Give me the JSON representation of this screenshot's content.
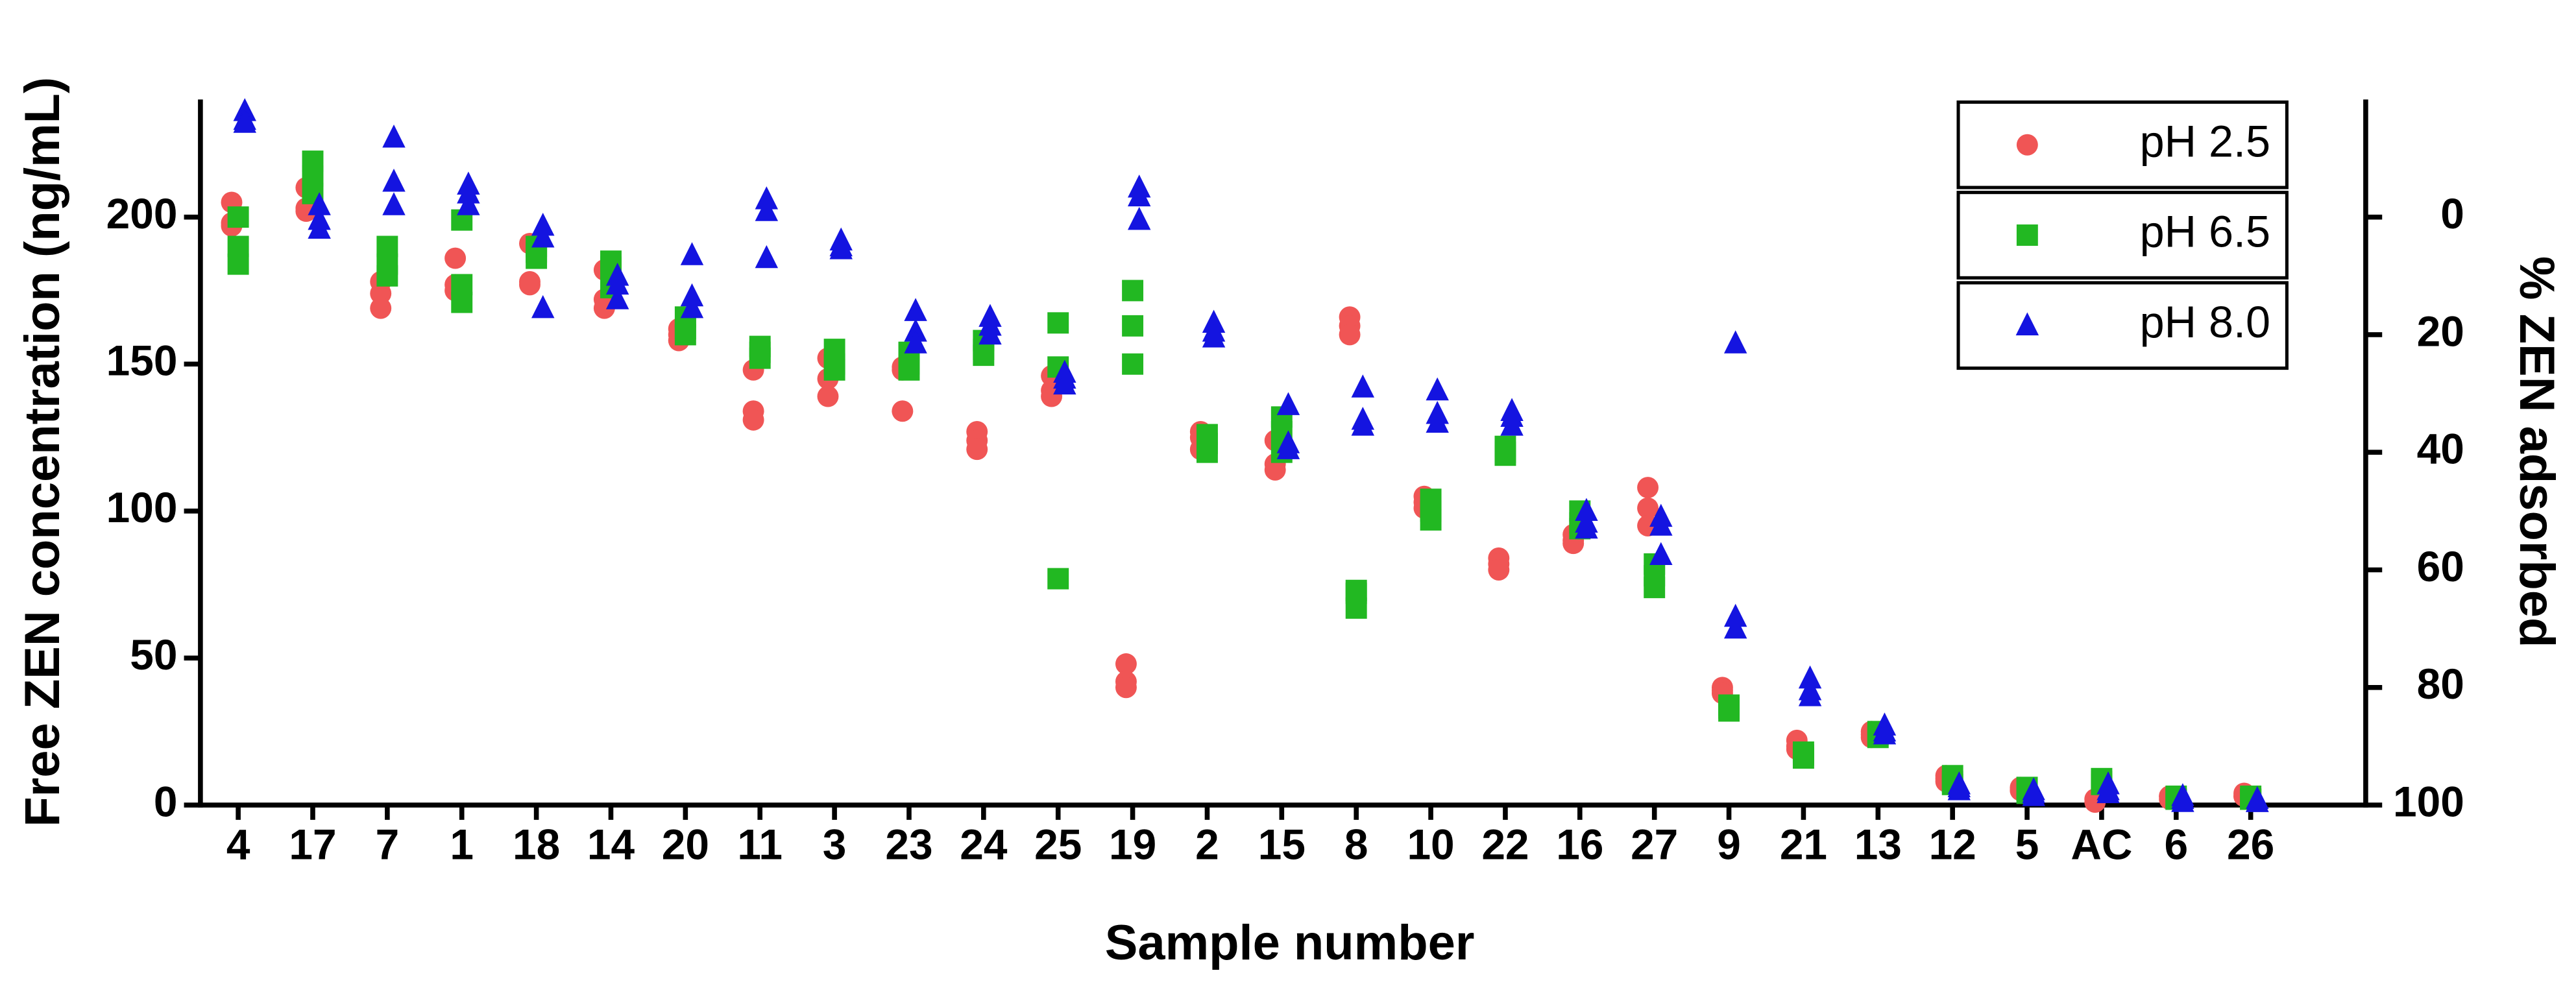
{
  "chart_data": {
    "type": "dot",
    "x_label": "Sample number",
    "y_label": "Free ZEN concentration (ng/mL)",
    "y2_label": "% ZEN adsorbed",
    "categories": [
      "4",
      "17",
      "7",
      "1",
      "18",
      "14",
      "20",
      "11",
      "3",
      "23",
      "24",
      "25",
      "19",
      "2",
      "15",
      "8",
      "10",
      "22",
      "16",
      "27",
      "9",
      "21",
      "13",
      "12",
      "5",
      "AC",
      "6",
      "26"
    ],
    "ylim": [
      0,
      240
    ],
    "yticks": [
      0,
      50,
      100,
      150,
      200
    ],
    "y2lim": [
      100,
      -20
    ],
    "y2ticks": [
      0,
      20,
      40,
      60,
      80,
      100
    ],
    "legend": "upper right",
    "series": [
      {
        "name": "pH 2.5",
        "color": "#f05555",
        "marker": "circle",
        "values": [
          [
            205,
            198,
            197
          ],
          [
            210,
            203,
            202
          ],
          [
            178,
            174,
            169
          ],
          [
            186,
            177,
            175
          ],
          [
            191,
            178,
            177
          ],
          [
            182,
            172,
            169
          ],
          [
            162,
            160,
            158
          ],
          [
            148,
            134,
            131
          ],
          [
            152,
            145,
            139
          ],
          [
            149,
            148,
            134
          ],
          [
            127,
            124,
            121
          ],
          [
            146,
            141,
            139
          ],
          [
            48,
            42,
            40
          ],
          [
            127,
            125,
            121
          ],
          [
            124,
            116,
            114
          ],
          [
            166,
            163,
            160
          ],
          [
            105,
            103,
            101
          ],
          [
            84,
            82,
            80
          ],
          [
            92,
            90,
            89
          ],
          [
            108,
            101,
            95
          ],
          [
            40,
            39,
            38
          ],
          [
            22,
            20,
            19
          ],
          [
            25,
            24,
            23
          ],
          [
            10,
            9,
            8
          ],
          [
            6,
            5,
            5
          ],
          [
            2,
            2,
            1
          ],
          [
            3,
            3,
            2
          ],
          [
            4,
            3,
            3
          ]
        ]
      },
      {
        "name": "pH 6.5",
        "color": "#22b822",
        "marker": "square",
        "values": [
          [
            200,
            190,
            184
          ],
          [
            219,
            214,
            208
          ],
          [
            190,
            184,
            180
          ],
          [
            199,
            177,
            171
          ],
          [
            190,
            188,
            186
          ],
          [
            185,
            183,
            176
          ],
          [
            166,
            162,
            160
          ],
          [
            156,
            154,
            152
          ],
          [
            155,
            150,
            148
          ],
          [
            154,
            150,
            148
          ],
          [
            158,
            155,
            153
          ],
          [
            164,
            149,
            77
          ],
          [
            175,
            163,
            150
          ],
          [
            126,
            123,
            120
          ],
          [
            132,
            127,
            120
          ],
          [
            73,
            72,
            67
          ],
          [
            104,
            100,
            97
          ],
          [
            122,
            120,
            119
          ],
          [
            100,
            96,
            94
          ],
          [
            82,
            78,
            74
          ],
          [
            34,
            33,
            32
          ],
          [
            18,
            17,
            16
          ],
          [
            25,
            24,
            23
          ],
          [
            10,
            8,
            7
          ],
          [
            6,
            5,
            4
          ],
          [
            9,
            8,
            7
          ],
          [
            3,
            2,
            2
          ],
          [
            3,
            2,
            2
          ]
        ]
      },
      {
        "name": "pH 8.0",
        "color": "#1414e0",
        "marker": "triangle",
        "values": [
          [
            236,
            233,
            232
          ],
          [
            204,
            199,
            196
          ],
          [
            227,
            212,
            204
          ],
          [
            211,
            208,
            204
          ],
          [
            197,
            193,
            169
          ],
          [
            180,
            177,
            172
          ],
          [
            187,
            173,
            169
          ],
          [
            206,
            202,
            186
          ],
          [
            192,
            190,
            189
          ],
          [
            168,
            161,
            157
          ],
          [
            166,
            163,
            160
          ],
          [
            147,
            145,
            143
          ],
          [
            210,
            207,
            199
          ],
          [
            164,
            161,
            159
          ],
          [
            136,
            123,
            121
          ],
          [
            142,
            131,
            129
          ],
          [
            141,
            133,
            130
          ],
          [
            134,
            132,
            129
          ],
          [
            100,
            96,
            94
          ],
          [
            98,
            95,
            85
          ],
          [
            157,
            64,
            60
          ],
          [
            43,
            39,
            37
          ],
          [
            27,
            25,
            24
          ],
          [
            7,
            6,
            5
          ],
          [
            5,
            4,
            3
          ],
          [
            7,
            5,
            4
          ],
          [
            3,
            2,
            1
          ],
          [
            2,
            1,
            1
          ]
        ]
      }
    ]
  }
}
